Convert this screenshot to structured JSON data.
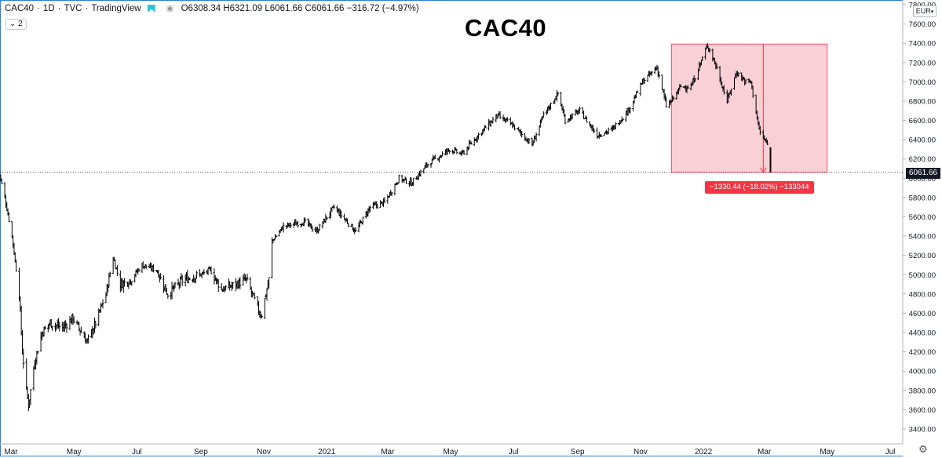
{
  "header": {
    "symbol": "CAC40",
    "interval": "1D",
    "source": "TVC",
    "platform": "TradingView",
    "ohlc": "O6308.34 H6321.09 L6061.66 C6061.66 −316.72 (−4.97%)",
    "indicator_count": "2"
  },
  "title": "CAC40",
  "currency_label": "EUR",
  "last_price_label": "6061.66",
  "measure_label": "−1330.44 (−18.02%) −133044",
  "colors": {
    "frame": "#2a7ee0",
    "measure_fill": "#f8d0d6",
    "measure_stroke": "#f23645",
    "candle": "#000000"
  },
  "chart_data": {
    "type": "line",
    "subtype": "daily-ohlc-bars",
    "title": "CAC40",
    "xlabel": "",
    "ylabel": "",
    "ylim": [
      3300,
      7800
    ],
    "y_ticks": [
      3400,
      3600,
      3800,
      4000,
      4200,
      4400,
      4600,
      4800,
      5000,
      5200,
      5400,
      5600,
      5800,
      6000,
      6200,
      6400,
      6600,
      6800,
      7000,
      7200,
      7400,
      7600,
      7800
    ],
    "y_tick_labels": [
      "3400.00",
      "3600.00",
      "3800.00",
      "4000.00",
      "4200.00",
      "4400.00",
      "4600.00",
      "4800.00",
      "5000.00",
      "5200.00",
      "5400.00",
      "5600.00",
      "5800.00",
      "6000.00",
      "6200.00",
      "6400.00",
      "6600.00",
      "6800.00",
      "7000.00",
      "7200.00",
      "7400.00",
      "7600.00",
      "7800.00"
    ],
    "x_ticks": [
      {
        "label": "Mar",
        "date": "2020-03-01"
      },
      {
        "label": "May",
        "date": "2020-05-01"
      },
      {
        "label": "Jul",
        "date": "2020-07-01"
      },
      {
        "label": "Sep",
        "date": "2020-09-01"
      },
      {
        "label": "Nov",
        "date": "2020-11-01"
      },
      {
        "label": "2021",
        "date": "2021-01-01"
      },
      {
        "label": "Mar",
        "date": "2021-03-01"
      },
      {
        "label": "May",
        "date": "2021-05-01"
      },
      {
        "label": "Jul",
        "date": "2021-07-01"
      },
      {
        "label": "Sep",
        "date": "2021-09-01"
      },
      {
        "label": "Nov",
        "date": "2021-11-01"
      },
      {
        "label": "2022",
        "date": "2022-01-01"
      },
      {
        "label": "Mar",
        "date": "2022-03-01"
      },
      {
        "label": "May",
        "date": "2022-05-01"
      },
      {
        "label": "Jul",
        "date": "2022-07-01"
      }
    ],
    "xlim": [
      "2020-02-18",
      "2022-08-05"
    ],
    "series": [
      {
        "values": [
          [
            "2020-02-18",
            6080
          ],
          [
            "2020-02-24",
            5800
          ],
          [
            "2020-03-02",
            5400
          ],
          [
            "2020-03-09",
            4800
          ],
          [
            "2020-03-12",
            4200
          ],
          [
            "2020-03-16",
            3800
          ],
          [
            "2020-03-18",
            3650
          ],
          [
            "2020-03-24",
            4100
          ],
          [
            "2020-03-31",
            4400
          ],
          [
            "2020-04-08",
            4500
          ],
          [
            "2020-04-20",
            4450
          ],
          [
            "2020-04-30",
            4550
          ],
          [
            "2020-05-14",
            4300
          ],
          [
            "2020-05-22",
            4500
          ],
          [
            "2020-06-01",
            4800
          ],
          [
            "2020-06-08",
            5180
          ],
          [
            "2020-06-15",
            4900
          ],
          [
            "2020-06-25",
            4950
          ],
          [
            "2020-07-06",
            5100
          ],
          [
            "2020-07-20",
            5050
          ],
          [
            "2020-07-31",
            4800
          ],
          [
            "2020-08-15",
            4950
          ],
          [
            "2020-09-01",
            5000
          ],
          [
            "2020-09-10",
            5050
          ],
          [
            "2020-09-21",
            4850
          ],
          [
            "2020-10-05",
            4900
          ],
          [
            "2020-10-15",
            4950
          ],
          [
            "2020-10-28",
            4600
          ],
          [
            "2020-10-30",
            4590
          ],
          [
            "2020-11-06",
            4950
          ],
          [
            "2020-11-09",
            5350
          ],
          [
            "2020-11-20",
            5500
          ],
          [
            "2020-12-10",
            5550
          ],
          [
            "2020-12-22",
            5450
          ],
          [
            "2021-01-08",
            5700
          ],
          [
            "2021-01-29",
            5450
          ],
          [
            "2021-02-12",
            5700
          ],
          [
            "2021-02-26",
            5750
          ],
          [
            "2021-03-12",
            6000
          ],
          [
            "2021-03-24",
            5950
          ],
          [
            "2021-04-09",
            6150
          ],
          [
            "2021-04-30",
            6300
          ],
          [
            "2021-05-12",
            6250
          ],
          [
            "2021-05-28",
            6450
          ],
          [
            "2021-06-15",
            6650
          ],
          [
            "2021-06-30",
            6550
          ],
          [
            "2021-07-19",
            6350
          ],
          [
            "2021-07-30",
            6650
          ],
          [
            "2021-08-13",
            6880
          ],
          [
            "2021-08-20",
            6600
          ],
          [
            "2021-09-03",
            6700
          ],
          [
            "2021-09-20",
            6450
          ],
          [
            "2021-10-04",
            6500
          ],
          [
            "2021-10-20",
            6700
          ],
          [
            "2021-11-03",
            7000
          ],
          [
            "2021-11-17",
            7150
          ],
          [
            "2021-11-26",
            6750
          ],
          [
            "2021-12-01",
            6800
          ],
          [
            "2021-12-10",
            6950
          ],
          [
            "2021-12-20",
            6950
          ],
          [
            "2022-01-05",
            7380
          ],
          [
            "2022-01-12",
            7200
          ],
          [
            "2022-01-24",
            6800
          ],
          [
            "2022-02-02",
            7100
          ],
          [
            "2022-02-11",
            7000
          ],
          [
            "2022-02-16",
            7000
          ],
          [
            "2022-02-24",
            6500
          ],
          [
            "2022-03-01",
            6400
          ],
          [
            "2022-03-04",
            6350
          ],
          [
            "2022-03-07",
            6061.66
          ]
        ]
      }
    ],
    "annotations": {
      "measure_box": {
        "x_from": "2021-12-01",
        "x_to": "2022-05-01",
        "y_from": 7392.1,
        "y_to": 6061.66,
        "change": -1330.44,
        "change_pct": -18.02
      },
      "last_price_line": 6061.66
    },
    "grid": false,
    "legend": "none"
  }
}
